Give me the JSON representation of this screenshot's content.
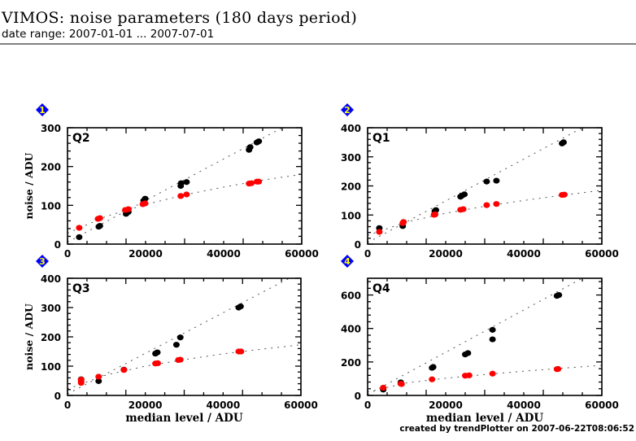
{
  "header": {
    "title": "VIMOS: noise parameters (180 days period)",
    "subtitle": "date range: 2007-01-01 ... 2007-07-01"
  },
  "footer": {
    "credit": "created by trendPlotter on 2007-06-22T08:06:52"
  },
  "colors": {
    "series_black": "#000000",
    "series_red": "#ff0000",
    "badge_fill": "#0000ff",
    "badge_text": "#ffff00",
    "fit_line": "#555555"
  },
  "chart_data": [
    {
      "type": "scatter",
      "panel_number": "1",
      "panel_label": "Q2",
      "xlabel": "",
      "ylabel": "noise / ADU",
      "xlim": [
        0,
        60000
      ],
      "ylim": [
        0,
        300
      ],
      "x_ticks": [
        0,
        20000,
        40000,
        60000
      ],
      "y_ticks": [
        0,
        100,
        200,
        300
      ],
      "grid": false,
      "series": [
        {
          "name": "black",
          "color": "#000000",
          "points": [
            [
              3000,
              18
            ],
            [
              8000,
              45
            ],
            [
              8300,
              47
            ],
            [
              15000,
              78
            ],
            [
              15600,
              83
            ],
            [
              19500,
              112
            ],
            [
              19900,
              117
            ],
            [
              29000,
              150
            ],
            [
              29100,
              157
            ],
            [
              30500,
              160
            ],
            [
              46500,
              243
            ],
            [
              46800,
              250
            ],
            [
              48500,
              262
            ],
            [
              49000,
              265
            ]
          ],
          "fit": [
            [
              0,
              5
            ],
            [
              55000,
              300
            ]
          ]
        },
        {
          "name": "red",
          "color": "#ff0000",
          "points": [
            [
              3000,
              42
            ],
            [
              7800,
              65
            ],
            [
              8300,
              67
            ],
            [
              14800,
              88
            ],
            [
              15600,
              90
            ],
            [
              19300,
              103
            ],
            [
              19900,
              105
            ],
            [
              29000,
              124
            ],
            [
              30500,
              128
            ],
            [
              46500,
              156
            ],
            [
              47100,
              157
            ],
            [
              48500,
              161
            ],
            [
              49000,
              161
            ]
          ],
          "fit": [
            [
              0,
              28
            ],
            [
              10000,
              72
            ],
            [
              20000,
              102
            ],
            [
              30000,
              127
            ],
            [
              40000,
              147
            ],
            [
              50000,
              165
            ],
            [
              60000,
              180
            ]
          ]
        }
      ]
    },
    {
      "type": "scatter",
      "panel_number": "2",
      "panel_label": "Q1",
      "xlabel": "",
      "ylabel": "",
      "xlim": [
        0,
        60000
      ],
      "ylim": [
        0,
        400
      ],
      "x_ticks": [
        0,
        20000,
        40000,
        60000
      ],
      "y_ticks": [
        0,
        100,
        200,
        300,
        400
      ],
      "grid": false,
      "series": [
        {
          "name": "black",
          "color": "#000000",
          "points": [
            [
              3000,
              55
            ],
            [
              9000,
              62
            ],
            [
              17200,
              113
            ],
            [
              17500,
              117
            ],
            [
              23800,
              163
            ],
            [
              24200,
              167
            ],
            [
              24800,
              171
            ],
            [
              30500,
              215
            ],
            [
              33000,
              218
            ],
            [
              49800,
              346
            ],
            [
              50200,
              350
            ]
          ],
          "fit": [
            [
              0,
              5
            ],
            [
              55000,
              400
            ]
          ]
        },
        {
          "name": "red",
          "color": "#ff0000",
          "points": [
            [
              3000,
              42
            ],
            [
              9000,
              72
            ],
            [
              9200,
              76
            ],
            [
              17000,
              101
            ],
            [
              17300,
              102
            ],
            [
              23800,
              118
            ],
            [
              24500,
              120
            ],
            [
              30500,
              134
            ],
            [
              33000,
              138
            ],
            [
              49800,
              169
            ],
            [
              50400,
              170
            ]
          ],
          "fit": [
            [
              0,
              30
            ],
            [
              10000,
              76
            ],
            [
              20000,
              106
            ],
            [
              30000,
              130
            ],
            [
              40000,
              150
            ],
            [
              50000,
              168
            ],
            [
              60000,
              185
            ]
          ]
        }
      ]
    },
    {
      "type": "scatter",
      "panel_number": "3",
      "panel_label": "Q3",
      "xlabel": "median level / ADU",
      "ylabel": "noise / ADU",
      "xlim": [
        0,
        60000
      ],
      "ylim": [
        0,
        400
      ],
      "x_ticks": [
        0,
        20000,
        40000,
        60000
      ],
      "y_ticks": [
        0,
        100,
        200,
        300,
        400
      ],
      "grid": false,
      "series": [
        {
          "name": "black",
          "color": "#000000",
          "points": [
            [
              3500,
              55
            ],
            [
              8000,
              49
            ],
            [
              14500,
              88
            ],
            [
              22600,
              143
            ],
            [
              23100,
              147
            ],
            [
              28000,
              173
            ],
            [
              29000,
              198
            ],
            [
              44000,
              300
            ],
            [
              44500,
              304
            ]
          ],
          "fit": [
            [
              0,
              5
            ],
            [
              57000,
              400
            ]
          ]
        },
        {
          "name": "red",
          "color": "#ff0000",
          "points": [
            [
              3500,
              43
            ],
            [
              3500,
              48
            ],
            [
              3500,
              54
            ],
            [
              8000,
              64
            ],
            [
              14500,
              87
            ],
            [
              22600,
              109
            ],
            [
              23200,
              110
            ],
            [
              28500,
              121
            ],
            [
              29000,
              122
            ],
            [
              44000,
              150
            ],
            [
              44600,
              150
            ]
          ],
          "fit": [
            [
              0,
              22
            ],
            [
              10000,
              70
            ],
            [
              20000,
              100
            ],
            [
              30000,
              122
            ],
            [
              40000,
              142
            ],
            [
              50000,
              158
            ],
            [
              60000,
              173
            ]
          ]
        }
      ]
    },
    {
      "type": "scatter",
      "panel_number": "4",
      "panel_label": "Q4",
      "xlabel": "median level / ADU",
      "ylabel": "",
      "xlim": [
        0,
        60000
      ],
      "ylim": [
        0,
        700
      ],
      "x_ticks": [
        0,
        20000,
        40000,
        60000
      ],
      "y_ticks": [
        0,
        200,
        400,
        600
      ],
      "grid": false,
      "series": [
        {
          "name": "black",
          "color": "#000000",
          "points": [
            [
              4000,
              35
            ],
            [
              8500,
              78
            ],
            [
              16500,
              165
            ],
            [
              16800,
              170
            ],
            [
              25000,
              245
            ],
            [
              25700,
              253
            ],
            [
              32000,
              392
            ],
            [
              32000,
              335
            ],
            [
              48500,
              595
            ],
            [
              49000,
              600
            ]
          ],
          "fit": [
            [
              0,
              5
            ],
            [
              55000,
              700
            ]
          ]
        },
        {
          "name": "red",
          "color": "#ff0000",
          "points": [
            [
              4000,
              46
            ],
            [
              8500,
              70
            ],
            [
              8700,
              68
            ],
            [
              16500,
              96
            ],
            [
              25000,
              118
            ],
            [
              26000,
              120
            ],
            [
              32000,
              130
            ],
            [
              48500,
              157
            ],
            [
              48800,
              158
            ]
          ],
          "fit": [
            [
              0,
              20
            ],
            [
              10000,
              75
            ],
            [
              20000,
              103
            ],
            [
              30000,
              125
            ],
            [
              40000,
              145
            ],
            [
              50000,
              163
            ],
            [
              60000,
              180
            ]
          ]
        }
      ]
    }
  ]
}
